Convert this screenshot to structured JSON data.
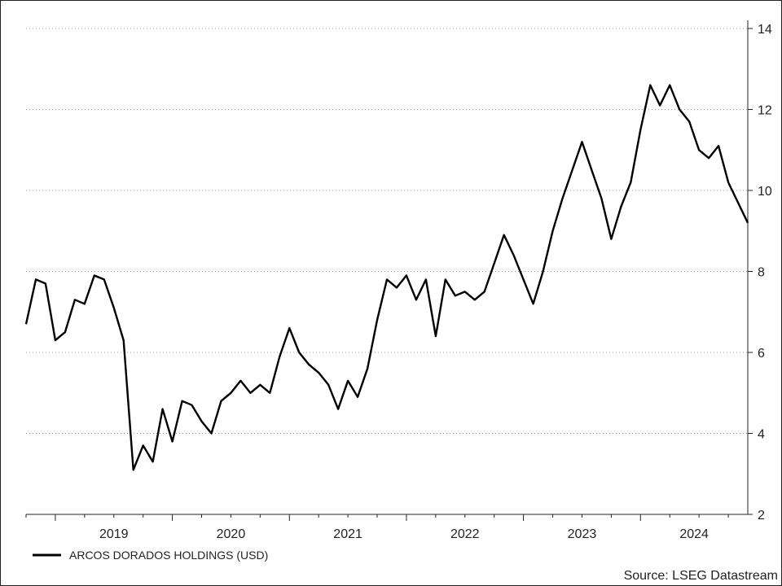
{
  "chart_data": {
    "type": "line",
    "title": "",
    "xlabel": "",
    "ylabel": "",
    "ylim": [
      2,
      14
    ],
    "y_ticks": [
      2,
      4,
      6,
      8,
      10,
      12,
      14
    ],
    "y_axis_side": "right",
    "x_year_labels": [
      "2019",
      "2020",
      "2021",
      "2022",
      "2023",
      "2024"
    ],
    "x_range": [
      "2018-10",
      "2024-12"
    ],
    "grid": "horizontal dotted",
    "legend": {
      "placement": "bottom-left",
      "entries": [
        "ARCOS DORADOS HOLDINGS (USD)"
      ]
    },
    "source": "Source: LSEG Datastream",
    "series": [
      {
        "name": "ARCOS DORADOS HOLDINGS (USD)",
        "color": "#000000",
        "x": [
          "2018-10",
          "2018-11",
          "2018-12",
          "2019-01",
          "2019-02",
          "2019-03",
          "2019-04",
          "2019-05",
          "2019-06",
          "2019-07",
          "2019-08",
          "2019-09",
          "2019-10",
          "2019-11",
          "2019-12",
          "2020-01",
          "2020-02",
          "2020-03",
          "2020-04",
          "2020-05",
          "2020-06",
          "2020-07",
          "2020-08",
          "2020-09",
          "2020-10",
          "2020-11",
          "2020-12",
          "2021-01",
          "2021-02",
          "2021-03",
          "2021-04",
          "2021-05",
          "2021-06",
          "2021-07",
          "2021-08",
          "2021-09",
          "2021-10",
          "2021-11",
          "2021-12",
          "2022-01",
          "2022-02",
          "2022-03",
          "2022-04",
          "2022-05",
          "2022-06",
          "2022-07",
          "2022-08",
          "2022-09",
          "2022-10",
          "2022-11",
          "2022-12",
          "2023-01",
          "2023-02",
          "2023-03",
          "2023-04",
          "2023-05",
          "2023-06",
          "2023-07",
          "2023-08",
          "2023-09",
          "2023-10",
          "2023-11",
          "2023-12",
          "2024-01",
          "2024-02",
          "2024-03",
          "2024-04",
          "2024-05",
          "2024-06",
          "2024-07",
          "2024-08",
          "2024-09",
          "2024-10",
          "2024-11",
          "2024-12"
        ],
        "y": [
          6.7,
          7.8,
          7.7,
          6.3,
          6.5,
          7.3,
          7.2,
          7.9,
          7.8,
          7.1,
          6.3,
          3.1,
          3.7,
          3.3,
          4.6,
          3.8,
          4.8,
          4.7,
          4.3,
          4.0,
          4.8,
          5.0,
          5.3,
          5.0,
          5.2,
          5.0,
          5.9,
          6.6,
          6.0,
          5.7,
          5.5,
          5.2,
          4.6,
          5.3,
          4.9,
          5.6,
          6.8,
          7.8,
          7.6,
          7.9,
          7.3,
          7.8,
          6.4,
          7.8,
          7.4,
          7.5,
          7.3,
          7.5,
          8.2,
          8.9,
          8.4,
          7.8,
          7.2,
          8.0,
          9.0,
          9.8,
          10.5,
          11.2,
          10.5,
          9.8,
          8.8,
          9.6,
          10.2,
          11.5,
          12.6,
          12.1,
          12.6,
          12.0,
          11.7,
          11.0,
          10.8,
          11.1,
          10.2,
          9.7,
          9.2
        ]
      }
    ]
  }
}
